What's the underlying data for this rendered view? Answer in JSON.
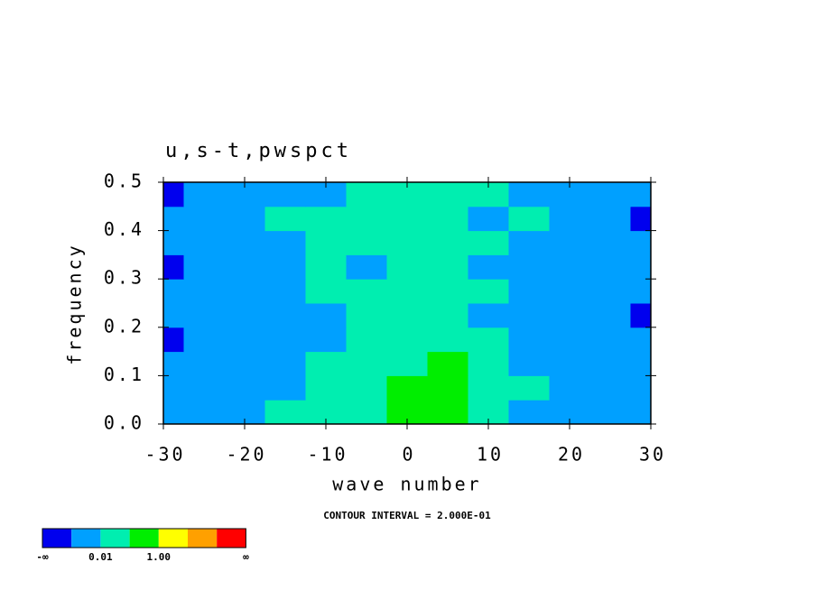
{
  "chart_data": {
    "type": "contour",
    "title": "u,s-t,pwspct",
    "xlabel": "wave number",
    "ylabel": "frequency",
    "annotation": "CONTOUR INTERVAL = 2.000E-01",
    "xlim": [
      -30,
      30
    ],
    "ylim": [
      0,
      0.5
    ],
    "xticks": [
      -30,
      -20,
      -10,
      0,
      10,
      20,
      30
    ],
    "yticks": [
      {
        "value": 0,
        "label": "0.0"
      },
      0.1,
      0.2,
      0.3,
      0.4,
      0.5
    ],
    "x": [
      -30,
      -25,
      -20,
      -15,
      -10,
      -5,
      0,
      5,
      10,
      15,
      20,
      25,
      30
    ],
    "y": [
      0.025,
      0.075,
      0.125,
      0.175,
      0.225,
      0.275,
      0.325,
      0.375,
      0.425,
      0.475
    ],
    "z": [
      [
        1,
        1,
        1,
        2,
        2,
        2,
        3,
        3,
        2,
        1,
        1,
        1,
        1
      ],
      [
        1,
        1,
        1,
        1,
        2,
        2,
        3,
        3,
        2,
        2,
        1,
        1,
        1
      ],
      [
        1,
        1,
        1,
        1,
        2,
        2,
        2,
        3,
        2,
        1,
        1,
        1,
        1
      ],
      [
        0,
        1,
        1,
        1,
        1,
        2,
        2,
        2,
        2,
        1,
        1,
        1,
        1
      ],
      [
        1,
        1,
        1,
        1,
        1,
        2,
        2,
        2,
        1,
        1,
        1,
        1,
        0
      ],
      [
        1,
        1,
        1,
        1,
        2,
        2,
        2,
        2,
        2,
        1,
        1,
        1,
        1
      ],
      [
        0,
        1,
        1,
        1,
        2,
        1,
        2,
        2,
        1,
        1,
        1,
        1,
        1
      ],
      [
        1,
        1,
        1,
        1,
        2,
        2,
        2,
        2,
        2,
        1,
        1,
        1,
        1
      ],
      [
        1,
        1,
        1,
        2,
        2,
        2,
        2,
        2,
        1,
        2,
        1,
        1,
        0
      ],
      [
        0,
        1,
        1,
        1,
        1,
        2,
        2,
        2,
        2,
        1,
        1,
        1,
        1
      ]
    ],
    "colors": [
      "#0000ee",
      "#00a0ff",
      "#00eeb0",
      "#00ee00",
      "#ffff00",
      "#ffa000",
      "#ff0000"
    ],
    "levels": [
      "-∞",
      null,
      "0.01",
      null,
      "1.00",
      null,
      null,
      "∞"
    ]
  }
}
